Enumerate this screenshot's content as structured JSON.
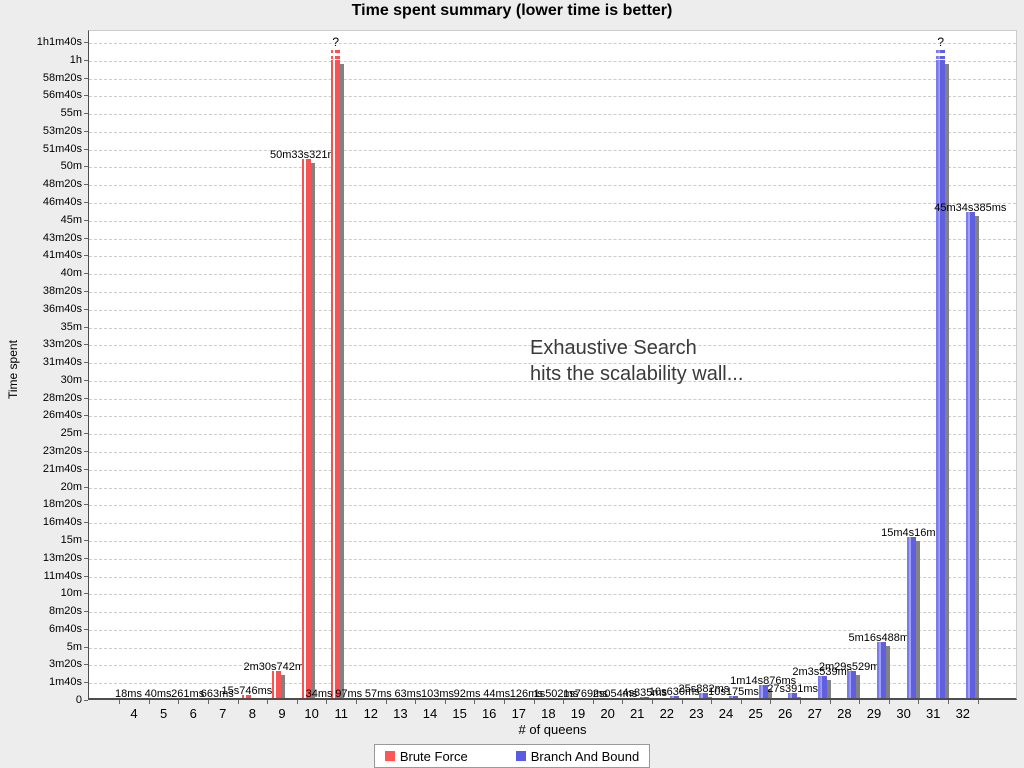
{
  "chart": {
    "title": "Time spent summary (lower time is better)",
    "xlabel": "# of queens",
    "ylabel": "Time spent",
    "annotation_line1": "Exhaustive Search",
    "annotation_line2": "hits the scalability wall...",
    "legend": [
      {
        "label": "Brute Force",
        "color": "#ff5555"
      },
      {
        "label": "Branch And Bound",
        "color": "#5a5ae6"
      }
    ]
  },
  "chart_data": {
    "type": "bar",
    "title": "Time spent summary (lower time is better)",
    "xlabel": "# of queens",
    "ylabel": "Time spent",
    "categories": [
      4,
      5,
      6,
      7,
      8,
      9,
      10,
      11,
      12,
      13,
      14,
      15,
      16,
      17,
      18,
      19,
      20,
      21,
      22,
      23,
      24,
      25,
      26,
      27,
      28,
      29,
      30,
      31,
      32
    ],
    "unit": "seconds",
    "ylim_seconds": [
      0,
      3700
    ],
    "y_tick_step_seconds": 100,
    "y_ticks": [
      "0",
      "1m40s",
      "3m20s",
      "5m",
      "6m40s",
      "8m20s",
      "10m",
      "11m40s",
      "13m20s",
      "15m",
      "16m40s",
      "18m20s",
      "20m",
      "21m40s",
      "23m20s",
      "25m",
      "26m40s",
      "28m20s",
      "30m",
      "31m40s",
      "33m20s",
      "35m",
      "36m40s",
      "38m20s",
      "40m",
      "41m40s",
      "43m20s",
      "45m",
      "46m40s",
      "48m20s",
      "50m",
      "51m40s",
      "53m20s",
      "55m",
      "56m40s",
      "58m20s",
      "1h",
      "1h1m40s"
    ],
    "grid": "dashed horizontal",
    "legend_position": "bottom",
    "exceeded_note": "bars marked exceeded are drawn past the top of the scale with a dashed cap and a ? label",
    "series": [
      {
        "name": "Brute Force",
        "color": "#ff5555",
        "points": [
          {
            "q": 4,
            "seconds": 0.018,
            "label": "18ms"
          },
          {
            "q": 5,
            "seconds": 0.04,
            "label": "40ms"
          },
          {
            "q": 6,
            "seconds": 0.261,
            "label": "261ms"
          },
          {
            "q": 7,
            "seconds": 0.663,
            "label": "663ms"
          },
          {
            "q": 8,
            "seconds": 15.746,
            "label": "15s746ms"
          },
          {
            "q": 9,
            "seconds": 150.742,
            "label": "2m30s742ms"
          },
          {
            "q": 10,
            "seconds": 3033.321,
            "label": "50m33s321ms"
          },
          {
            "q": 11,
            "seconds": null,
            "label": "?",
            "exceeded": true
          }
        ]
      },
      {
        "name": "Branch And Bound",
        "color": "#5a5ae6",
        "points": [
          {
            "q": 10,
            "seconds": 0.034,
            "label": "34ms"
          },
          {
            "q": 11,
            "seconds": 0.097,
            "label": "97ms"
          },
          {
            "q": 12,
            "seconds": 0.057,
            "label": "57ms"
          },
          {
            "q": 13,
            "seconds": 0.063,
            "label": "63ms"
          },
          {
            "q": 14,
            "seconds": 0.103,
            "label": "103ms"
          },
          {
            "q": 15,
            "seconds": 0.092,
            "label": "92ms"
          },
          {
            "q": 16,
            "seconds": 0.044,
            "label": "44ms"
          },
          {
            "q": 17,
            "seconds": 0.126,
            "label": "126ms"
          },
          {
            "q": 18,
            "seconds": 1.502,
            "label": "1s502ms"
          },
          {
            "q": 19,
            "seconds": 1.769,
            "label": "1s769ms"
          },
          {
            "q": 20,
            "seconds": 2.054,
            "label": "2s054ms"
          },
          {
            "q": 21,
            "seconds": 4.835,
            "label": "4s835ms"
          },
          {
            "q": 22,
            "seconds": 10.63,
            "label": "10s630ms"
          },
          {
            "q": 23,
            "seconds": 25.882,
            "label": "25s882ms"
          },
          {
            "q": 24,
            "seconds": 10.175,
            "label": "10s175ms"
          },
          {
            "q": 25,
            "seconds": 74.876,
            "label": "1m14s876ms"
          },
          {
            "q": 26,
            "seconds": 27.391,
            "label": "27s391ms"
          },
          {
            "q": 27,
            "seconds": 123.539,
            "label": "2m3s539ms"
          },
          {
            "q": 28,
            "seconds": 149.529,
            "label": "2m29s529ms"
          },
          {
            "q": 29,
            "seconds": 316.488,
            "label": "5m16s488ms"
          },
          {
            "q": 30,
            "seconds": 904.016,
            "label": "15m4s16ms"
          },
          {
            "q": 31,
            "seconds": null,
            "label": "?",
            "exceeded": true
          },
          {
            "q": 32,
            "seconds": 2734.385,
            "label": "45m34s385ms"
          }
        ]
      }
    ],
    "annotation": "Exhaustive Search hits the scalability wall..."
  }
}
